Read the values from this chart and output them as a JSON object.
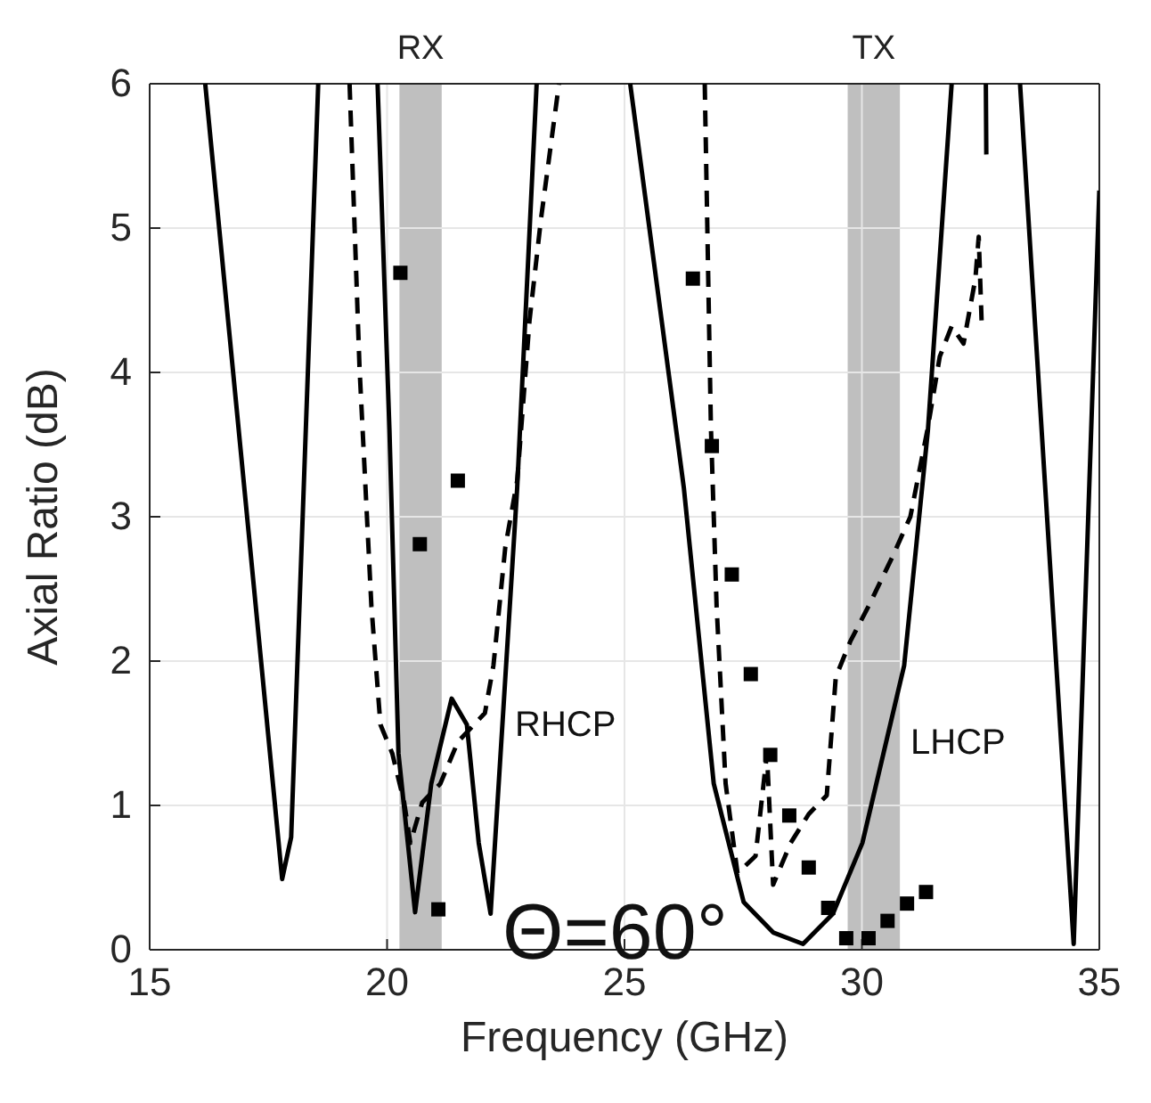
{
  "chart_data": {
    "type": "line",
    "xlabel": "Frequency (GHz)",
    "ylabel": "Axial Ratio (dB)",
    "xlim": [
      15,
      35
    ],
    "ylim": [
      0,
      6
    ],
    "xticks": [
      15,
      20,
      25,
      30,
      35
    ],
    "yticks": [
      0,
      1,
      2,
      3,
      4,
      5,
      6
    ],
    "grid": true,
    "series": [
      {
        "color": "#000000",
        "line_style": "solid",
        "x": [
          16.17,
          17.79,
          17.98,
          18.55,
          19.2,
          19.8,
          20.05,
          20.24,
          20.59,
          20.93,
          21.36,
          21.68,
          21.93,
          22.18,
          22.74,
          23.15,
          24.0,
          25.12,
          25.75,
          26.25,
          26.88,
          27.51,
          28.13,
          28.76,
          29.39,
          30.01,
          30.89,
          31.39,
          31.89,
          32.2,
          32.61,
          32.62,
          33.0,
          33.33,
          34.46,
          35.0
        ],
        "values": [
          6,
          0.49,
          0.78,
          6,
          null,
          6,
          3.6,
          1.36,
          0.26,
          1.15,
          1.74,
          1.56,
          0.74,
          0.25,
          3.2,
          6,
          null,
          6,
          4.44,
          3.2,
          1.15,
          0.33,
          0.12,
          0.04,
          0.25,
          0.74,
          1.97,
          3.6,
          6,
          null,
          6,
          5.51,
          null,
          6,
          0.04,
          5.26
        ]
      },
      {
        "color": "#000000",
        "line_style": "dashed",
        "x": [
          19.21,
          19.42,
          19.67,
          19.86,
          20.11,
          20.36,
          20.49,
          20.74,
          21.12,
          21.49,
          22.06,
          22.24,
          22.49,
          22.74,
          23.0,
          23.24,
          23.62,
          25.0,
          26.69,
          26.82,
          26.94,
          27.13,
          27.38,
          27.76,
          28.0,
          28.13,
          28.5,
          28.88,
          29.26,
          29.45,
          29.76,
          30.14,
          30.64,
          31.02,
          31.39,
          31.64,
          31.89,
          32.14,
          32.39,
          32.46,
          32.52
        ],
        "values": [
          6,
          4.03,
          2.38,
          1.56,
          1.36,
          1.02,
          0.74,
          1.02,
          1.15,
          1.44,
          1.64,
          1.97,
          2.79,
          3.25,
          4.36,
          5.06,
          6,
          null,
          6,
          3.62,
          2.38,
          1.15,
          0.53,
          0.65,
          1.36,
          0.45,
          0.74,
          0.94,
          1.07,
          1.89,
          2.14,
          2.38,
          2.72,
          3.0,
          3.62,
          4.11,
          4.32,
          4.2,
          4.65,
          4.94,
          4.36
        ]
      },
      {
        "type": "scatter",
        "color": "#000000",
        "marker": "square",
        "x": [
          20.28,
          20.69,
          21.49,
          21.08,
          26.44,
          26.84,
          27.26,
          27.66,
          28.07,
          28.47,
          28.88,
          29.29,
          29.67,
          30.14,
          30.54,
          30.95,
          31.35
        ],
        "values": [
          4.69,
          2.81,
          3.25,
          0.28,
          4.65,
          3.49,
          2.6,
          1.91,
          1.35,
          0.93,
          0.57,
          0.29,
          0.08,
          0.08,
          0.2,
          0.32,
          0.4
        ]
      }
    ],
    "bands": [
      {
        "axis": "x",
        "from": 20.26,
        "to": 21.15,
        "label": "RX",
        "color": "#bfbfbf"
      },
      {
        "axis": "x",
        "from": 29.7,
        "to": 30.8,
        "label": "TX",
        "color": "#bfbfbf"
      }
    ],
    "annotations": [
      "RHCP",
      "LHCP",
      "Θ=60°"
    ]
  }
}
